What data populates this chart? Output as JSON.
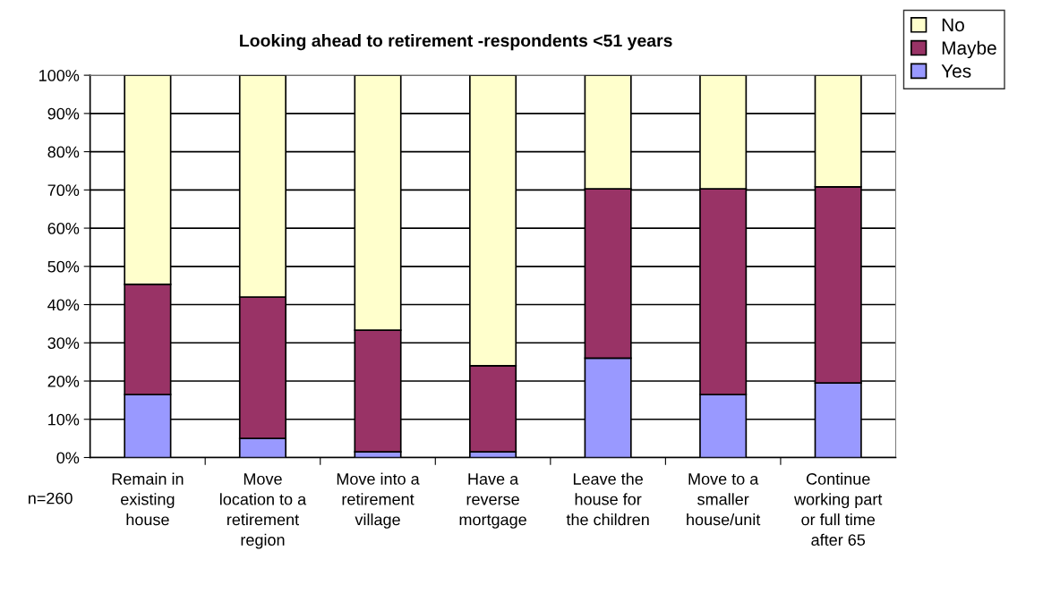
{
  "chart_data": {
    "type": "bar",
    "title": "Looking ahead to retirement -respondents <51 years",
    "categories": [
      "Remain in\nexisting\nhouse",
      "Move\nlocation to a\nretirement\nregion",
      "Move into a\nretirement\nvillage",
      "Have a\nreverse\nmortgage",
      "Leave the\nhouse for\nthe children",
      "Move to a\nsmaller\nhouse/unit",
      "Continue\nworking part\nor full time\nafter 65"
    ],
    "series": [
      {
        "name": "Yes",
        "color": "#9999ff",
        "values": [
          16.5,
          5,
          1.5,
          1.5,
          26,
          16.5,
          19.5
        ]
      },
      {
        "name": "Maybe",
        "color": "#993366",
        "values": [
          28.8,
          37,
          31.8,
          22.5,
          44.3,
          53.8,
          51.3
        ]
      },
      {
        "name": "No",
        "color": "#ffffcc",
        "values": [
          54.7,
          58,
          66.7,
          76,
          29.7,
          29.7,
          29.2
        ]
      }
    ],
    "stacked": true,
    "ylim": [
      0,
      100
    ],
    "yticks": [
      {
        "value": 0,
        "label": "0%"
      },
      {
        "value": 10,
        "label": "10%"
      },
      {
        "value": 20,
        "label": "20%"
      },
      {
        "value": 30,
        "label": "30%"
      },
      {
        "value": 40,
        "label": "40%"
      },
      {
        "value": 50,
        "label": "50%"
      },
      {
        "value": 60,
        "label": "60%"
      },
      {
        "value": 70,
        "label": "70%"
      },
      {
        "value": 80,
        "label": "80%"
      },
      {
        "value": 90,
        "label": "90%"
      },
      {
        "value": 100,
        "label": "100%"
      }
    ],
    "grid": "y",
    "legend": "top right",
    "annotations": [
      "n=260"
    ]
  }
}
